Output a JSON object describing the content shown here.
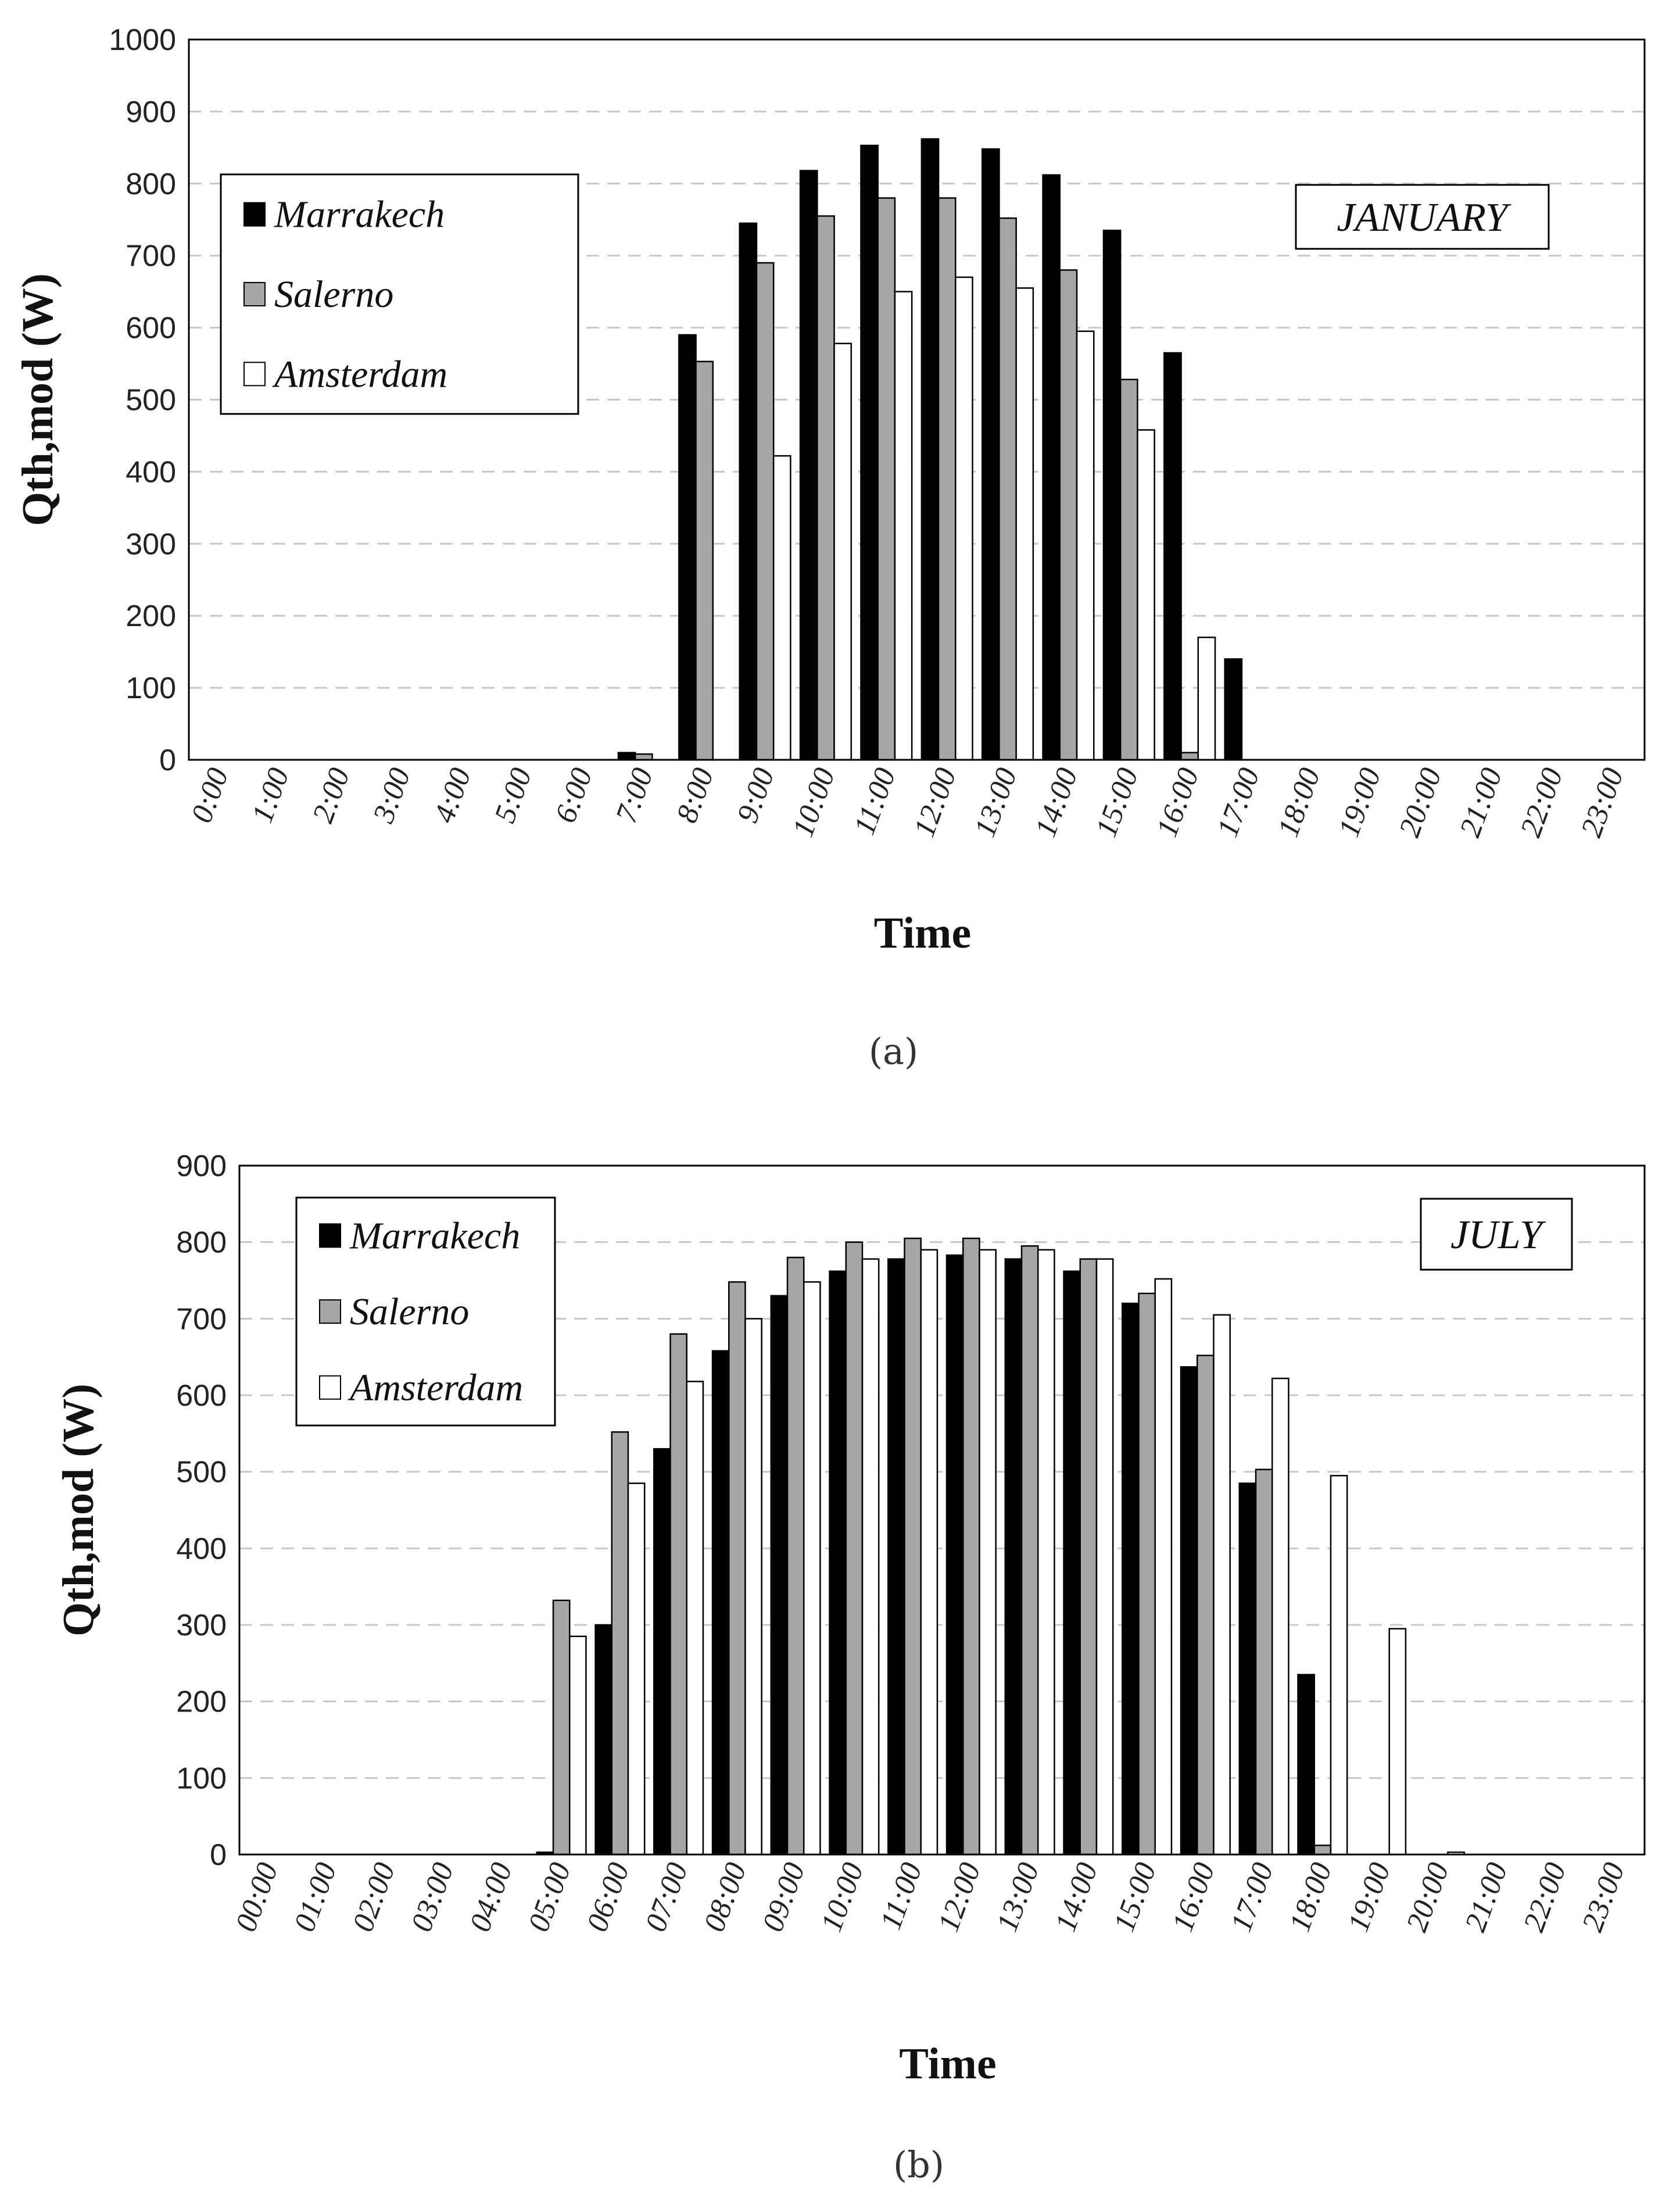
{
  "chart_data": [
    {
      "type": "bar",
      "panel_label": "(a)",
      "month_label": "JANUARY",
      "xlabel": "Time",
      "ylabel": "Qth,mod (W)",
      "ylim": [
        0,
        1000
      ],
      "ytick_step": 100,
      "grid": true,
      "legend_position": "top-left",
      "categories": [
        "0:00",
        "1:00",
        "2:00",
        "3:00",
        "4:00",
        "5:00",
        "6:00",
        "7:00",
        "8:00",
        "9:00",
        "10:00",
        "11:00",
        "12:00",
        "13:00",
        "14:00",
        "15:00",
        "16:00",
        "17:00",
        "18:00",
        "19:00",
        "20:00",
        "21:00",
        "22:00",
        "23:00"
      ],
      "series": [
        {
          "name": "Marrakech",
          "color": "#000000",
          "values": [
            0,
            0,
            0,
            0,
            0,
            0,
            0,
            10,
            590,
            745,
            818,
            853,
            862,
            848,
            812,
            735,
            565,
            140,
            0,
            0,
            0,
            0,
            0,
            0
          ]
        },
        {
          "name": "Salerno",
          "color": "#a6a6a6",
          "values": [
            0,
            0,
            0,
            0,
            0,
            0,
            0,
            8,
            553,
            690,
            755,
            780,
            780,
            752,
            680,
            528,
            10,
            0,
            0,
            0,
            0,
            0,
            0,
            0
          ]
        },
        {
          "name": "Amsterdam",
          "color": "#ffffff",
          "values": [
            0,
            0,
            0,
            0,
            0,
            0,
            0,
            0,
            0,
            422,
            578,
            650,
            670,
            655,
            595,
            458,
            170,
            0,
            0,
            0,
            0,
            0,
            0,
            0
          ]
        }
      ]
    },
    {
      "type": "bar",
      "panel_label": "(b)",
      "month_label": "JULY",
      "xlabel": "Time",
      "ylabel": "Qth,mod (W)",
      "ylim": [
        0,
        900
      ],
      "ytick_step": 100,
      "grid": true,
      "legend_position": "top-left",
      "categories": [
        "00:00",
        "01:00",
        "02:00",
        "03:00",
        "04:00",
        "05:00",
        "06:00",
        "07:00",
        "08:00",
        "09:00",
        "10:00",
        "11:00",
        "12:00",
        "13:00",
        "14:00",
        "15:00",
        "16:00",
        "17:00",
        "18:00",
        "19:00",
        "20:00",
        "21:00",
        "22:00",
        "23:00"
      ],
      "series": [
        {
          "name": "Marrakech",
          "color": "#000000",
          "values": [
            0,
            0,
            0,
            0,
            0,
            3,
            300,
            530,
            658,
            730,
            762,
            778,
            783,
            778,
            762,
            720,
            637,
            485,
            235,
            0,
            0,
            0,
            0,
            0
          ]
        },
        {
          "name": "Salerno",
          "color": "#a6a6a6",
          "values": [
            0,
            0,
            0,
            0,
            0,
            332,
            552,
            680,
            748,
            780,
            800,
            805,
            805,
            795,
            778,
            733,
            652,
            503,
            12,
            0,
            0,
            0,
            0,
            0
          ]
        },
        {
          "name": "Amsterdam",
          "color": "#ffffff",
          "values": [
            0,
            0,
            0,
            0,
            0,
            285,
            485,
            618,
            700,
            748,
            778,
            790,
            790,
            790,
            778,
            752,
            705,
            622,
            495,
            295,
            3,
            0,
            0,
            0
          ]
        }
      ]
    }
  ]
}
